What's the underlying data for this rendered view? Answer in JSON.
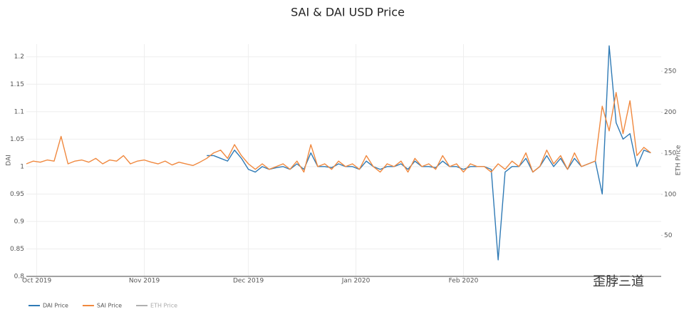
{
  "chart_data": {
    "type": "line",
    "title": "SAI & DAI USD Price",
    "ylabel": "DAI",
    "y2label": "ETH Price",
    "x": [
      0,
      2,
      4,
      6,
      8,
      10,
      12,
      14,
      16,
      18,
      20,
      22,
      24,
      26,
      28,
      30,
      32,
      34,
      36,
      38,
      40,
      42,
      44,
      46,
      48,
      50,
      52,
      54,
      56,
      58,
      60,
      62,
      64,
      66,
      68,
      70,
      72,
      74,
      76,
      78,
      80,
      82,
      84,
      86,
      88,
      90,
      92,
      94,
      96,
      98,
      100,
      102,
      104,
      106,
      108,
      110,
      112,
      114,
      116,
      118,
      120,
      122,
      124,
      126,
      128,
      130,
      132,
      134,
      136,
      138,
      140,
      142,
      144,
      146,
      148,
      150,
      152,
      154,
      156,
      158,
      160,
      162,
      164,
      166,
      168,
      170,
      172,
      174,
      176,
      178,
      180
    ],
    "xlim": [
      0,
      183
    ],
    "xticks": [
      {
        "value": 3,
        "label": "Oct 2019"
      },
      {
        "value": 34,
        "label": "Nov 2019"
      },
      {
        "value": 64,
        "label": "Dec 2019"
      },
      {
        "value": 95,
        "label": "Jan 2020"
      },
      {
        "value": 126,
        "label": "Feb 2020"
      }
    ],
    "ylim": [
      0.8,
      1.223
    ],
    "yticks": [
      0.8,
      0.85,
      0.9,
      0.95,
      1,
      1.05,
      1.1,
      1.15,
      1.2
    ],
    "y2lim": [
      0,
      283
    ],
    "y2ticks": [
      50,
      100,
      150,
      200,
      250
    ],
    "grid": true,
    "legend": "bottom-left",
    "series": [
      {
        "name": "DAI Price",
        "color": "#2f7ab5",
        "values": [
          null,
          null,
          null,
          null,
          null,
          null,
          null,
          null,
          null,
          null,
          null,
          null,
          null,
          null,
          null,
          null,
          null,
          null,
          null,
          null,
          null,
          null,
          null,
          null,
          null,
          null,
          1.02,
          1.02,
          1.015,
          1.01,
          1.03,
          1.015,
          0.995,
          0.99,
          1.0,
          0.995,
          0.998,
          1.0,
          0.995,
          1.005,
          0.995,
          1.025,
          1.0,
          1.0,
          0.998,
          1.005,
          1.0,
          1.0,
          0.995,
          1.01,
          1.0,
          0.995,
          1.0,
          1.0,
          1.005,
          0.995,
          1.01,
          1.0,
          1.0,
          0.998,
          1.01,
          1.0,
          1.0,
          0.995,
          1.0,
          1.0,
          1.0,
          0.995,
          0.83,
          0.99,
          1.0,
          1.0,
          1.015,
          0.99,
          1.0,
          1.02,
          1.0,
          1.015,
          0.995,
          1.015,
          1.0,
          1.005,
          1.01,
          0.95,
          1.22,
          1.08,
          1.05,
          1.06,
          1.0,
          1.03,
          1.025
        ]
      },
      {
        "name": "SAI Price",
        "color": "#f0883e",
        "values": [
          1.005,
          1.01,
          1.008,
          1.012,
          1.01,
          1.055,
          1.005,
          1.01,
          1.012,
          1.008,
          1.015,
          1.005,
          1.012,
          1.01,
          1.02,
          1.005,
          1.01,
          1.012,
          1.008,
          1.005,
          1.01,
          1.003,
          1.008,
          1.005,
          1.002,
          1.008,
          1.015,
          1.025,
          1.03,
          1.015,
          1.04,
          1.02,
          1.005,
          0.995,
          1.005,
          0.995,
          1.0,
          1.005,
          0.995,
          1.01,
          0.99,
          1.04,
          1.0,
          1.005,
          0.995,
          1.01,
          1.0,
          1.005,
          0.995,
          1.02,
          1.0,
          0.99,
          1.005,
          1.0,
          1.01,
          0.99,
          1.015,
          1.0,
          1.005,
          0.995,
          1.02,
          1.0,
          1.005,
          0.99,
          1.005,
          1.0,
          1.0,
          0.99,
          1.005,
          0.995,
          1.01,
          1.0,
          1.025,
          0.99,
          1.0,
          1.03,
          1.005,
          1.02,
          0.995,
          1.025,
          1.0,
          1.005,
          1.01,
          1.11,
          1.065,
          1.135,
          1.06,
          1.12,
          1.02,
          1.035,
          1.025
        ]
      },
      {
        "name": "ETH Price",
        "color": "#b0b0b0",
        "axis": "y2",
        "visible": false,
        "values": [
          null,
          null,
          null,
          null,
          null,
          null,
          null,
          null,
          null,
          null,
          null,
          null,
          null,
          null,
          null,
          null,
          null,
          null,
          null,
          null,
          null,
          null,
          null,
          null,
          null,
          null,
          null,
          null,
          null,
          null,
          null,
          null,
          null,
          null,
          null,
          null,
          null,
          null,
          null,
          null,
          null,
          null,
          null,
          null,
          null,
          null,
          null,
          null,
          null,
          null,
          null,
          null,
          null,
          null,
          null,
          null,
          null,
          null,
          null,
          null,
          null,
          null,
          null,
          null,
          null,
          null,
          null,
          null,
          null,
          null,
          null,
          null,
          null,
          null,
          null,
          null,
          null,
          null,
          null,
          null,
          null,
          null,
          null,
          null,
          null,
          null,
          null,
          null,
          null,
          null,
          null
        ]
      }
    ]
  },
  "watermark": "歪脖三道"
}
